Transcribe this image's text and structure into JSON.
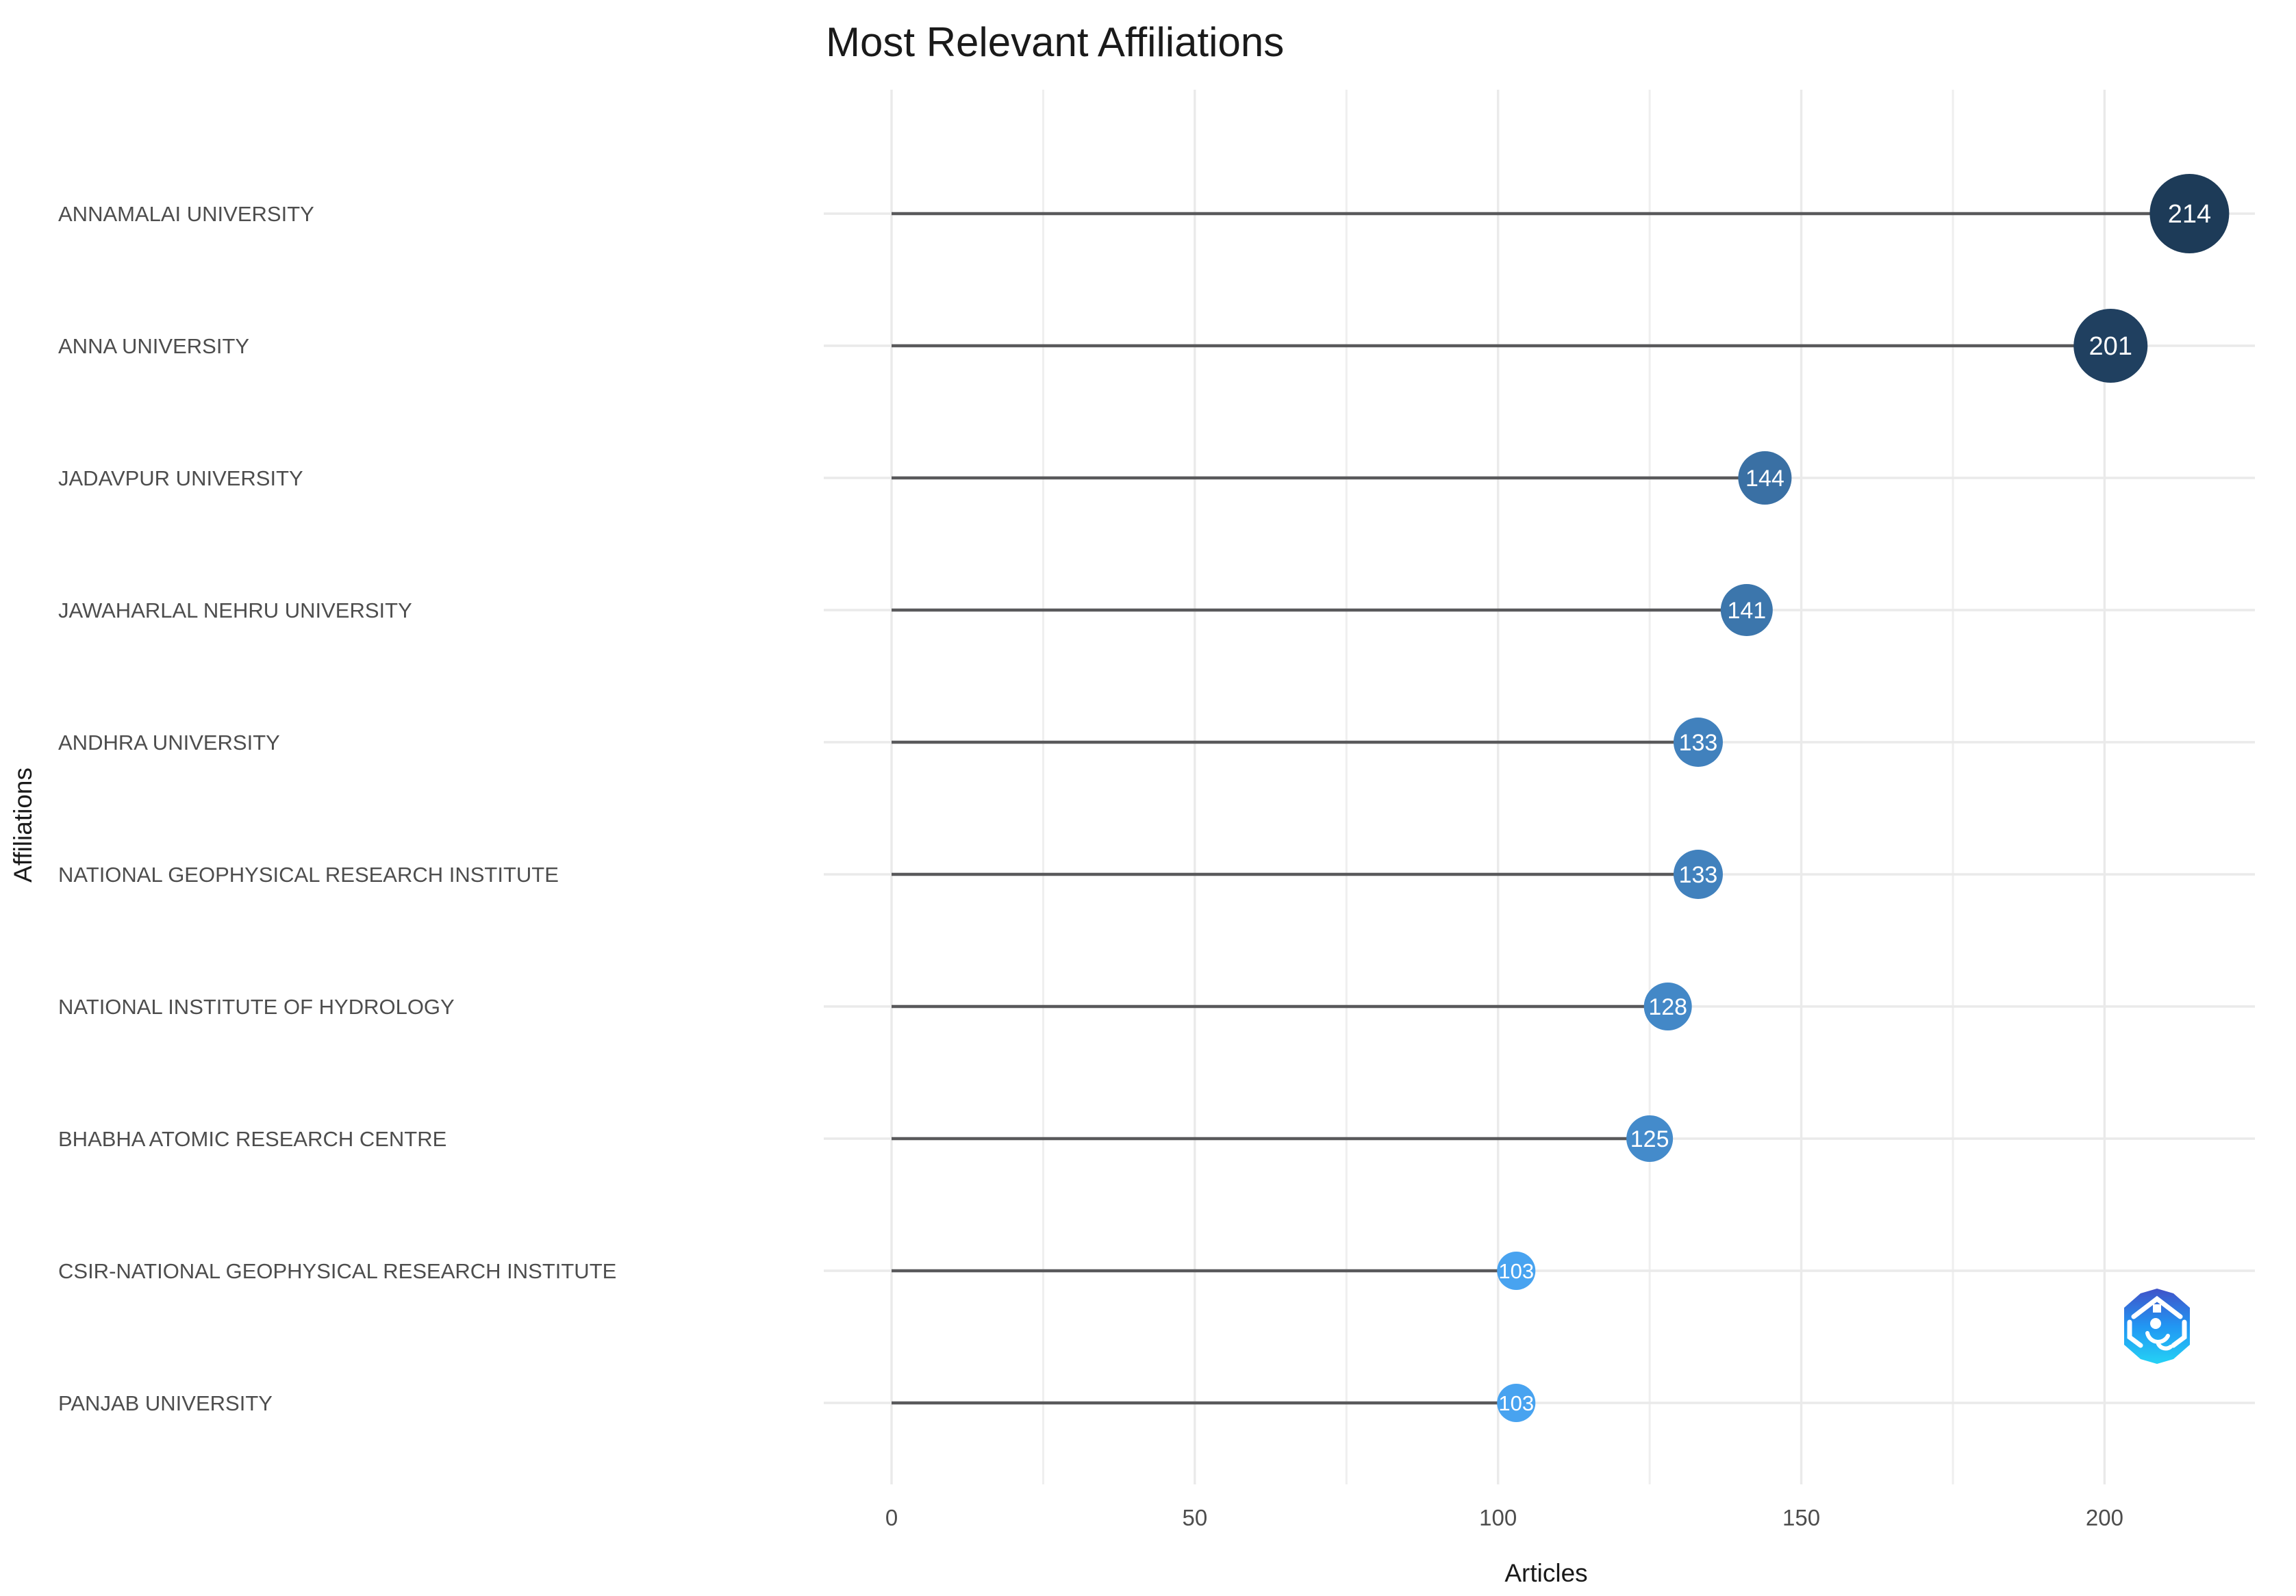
{
  "chart_data": {
    "type": "lollipop",
    "title": "Most Relevant Affiliations",
    "xlabel": "Articles",
    "ylabel": "Affiliations",
    "categories": [
      "ANNAMALAI UNIVERSITY",
      "ANNA UNIVERSITY",
      "JADAVPUR UNIVERSITY",
      "JAWAHARLAL NEHRU UNIVERSITY",
      "ANDHRA UNIVERSITY",
      "NATIONAL GEOPHYSICAL RESEARCH INSTITUTE",
      "NATIONAL INSTITUTE OF HYDROLOGY",
      "BHABHA ATOMIC RESEARCH CENTRE",
      "CSIR-NATIONAL GEOPHYSICAL RESEARCH INSTITUTE",
      "PANJAB UNIVERSITY"
    ],
    "values": [
      214,
      201,
      144,
      141,
      133,
      133,
      128,
      125,
      103,
      103
    ],
    "point_labels": [
      "214",
      "201",
      "144",
      "141",
      "133",
      "133",
      "128",
      "125",
      "103",
      "103"
    ],
    "point_colors": [
      "#1d3b58",
      "#204060",
      "#3a70a4",
      "#3c76ac",
      "#4181bd",
      "#4181bd",
      "#4388c7",
      "#448bcb",
      "#48a3f0",
      "#48a3f0"
    ],
    "x_ticks": [
      "0",
      "50",
      "100",
      "150",
      "200"
    ],
    "x_tick_values": [
      0,
      50,
      100,
      150,
      200
    ],
    "x_minor_tick_values": [
      25,
      75,
      125,
      175
    ],
    "xlim": [
      0,
      224
    ],
    "grid": true,
    "legend": false,
    "colors": {
      "grid": "#eaeaea",
      "minor_grid": "#efefef",
      "stem": "#59595b",
      "bubble_label": "#ffffff",
      "tick_label": "#4d4d4d",
      "category_label": "#4d4d4d",
      "title": "#1a1a1a",
      "logo_top": "#4152c8",
      "logo_mid": "#2196f3",
      "logo_bottom": "#25d2f5"
    }
  }
}
